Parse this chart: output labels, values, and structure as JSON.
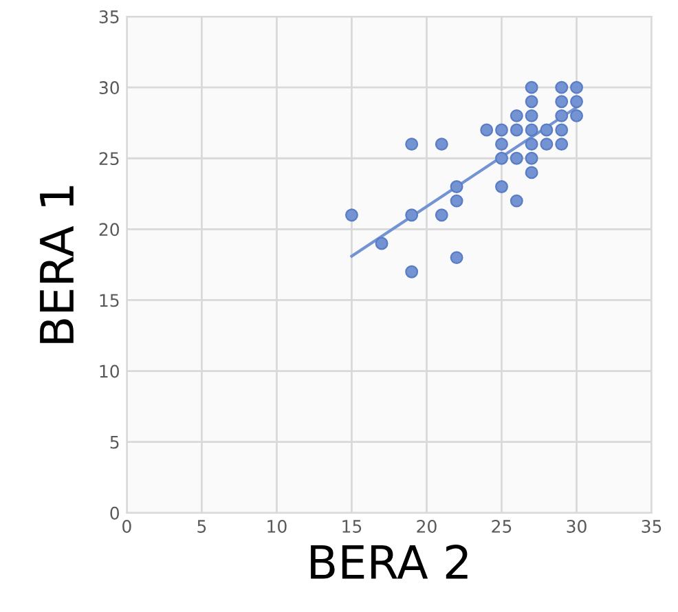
{
  "chart_data": {
    "type": "scatter",
    "xlabel": "BERA 2",
    "ylabel": "BERA 1",
    "xlim": [
      0,
      35
    ],
    "ylim": [
      0,
      35
    ],
    "xticks": [
      0,
      5,
      10,
      15,
      20,
      25,
      30,
      35
    ],
    "yticks": [
      0,
      5,
      10,
      15,
      20,
      25,
      30,
      35
    ],
    "grid": true,
    "series": [
      {
        "marker": "circle",
        "color": "#7393d3",
        "x": [
          15,
          17,
          19,
          19,
          19,
          21,
          21,
          22,
          22,
          22,
          24,
          25,
          25,
          25,
          25,
          26,
          26,
          26,
          26,
          27,
          27,
          27,
          27,
          27,
          27,
          27,
          28,
          28,
          29,
          29,
          29,
          29,
          29,
          30,
          30,
          30
        ],
        "values": [
          21,
          19,
          21,
          17,
          26,
          26,
          21,
          23,
          22,
          18,
          27,
          27,
          26,
          25,
          23,
          28,
          27,
          25,
          22,
          30,
          29,
          28,
          27,
          26,
          25,
          24,
          27,
          26,
          30,
          29,
          28,
          27,
          26,
          30,
          29,
          28
        ]
      },
      {
        "type": "line",
        "marker": "none",
        "color": "#7393d3",
        "x": [
          15,
          30
        ],
        "values": [
          18.1,
          28.6
        ]
      }
    ]
  }
}
